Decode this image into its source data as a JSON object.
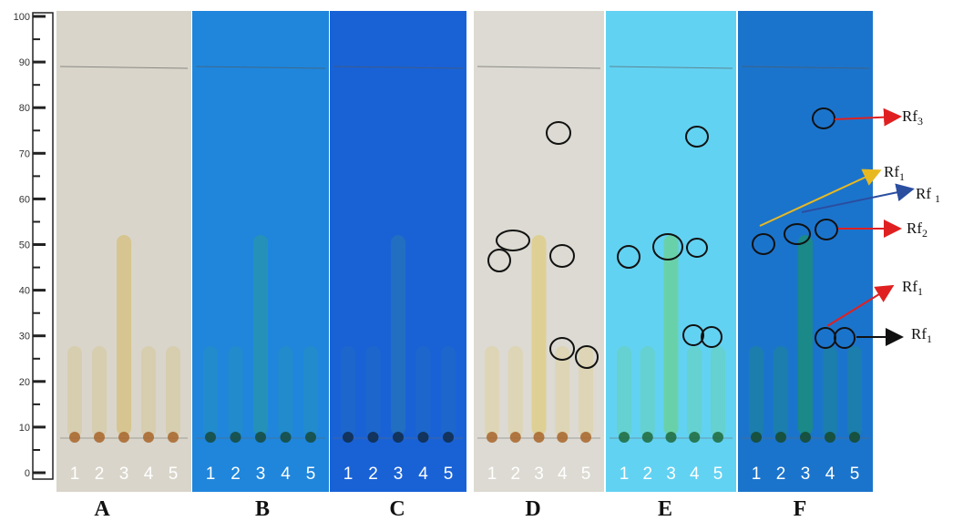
{
  "ruler": {
    "labels": [
      "0",
      "10",
      "20",
      "30",
      "40",
      "50",
      "60",
      "70",
      "80",
      "90",
      "100"
    ]
  },
  "panels": [
    {
      "label": "A",
      "lanes": [
        "1",
        "2",
        "3",
        "4",
        "5"
      ]
    },
    {
      "label": "B",
      "lanes": [
        "1",
        "2",
        "3",
        "4",
        "5"
      ]
    },
    {
      "label": "C",
      "lanes": [
        "1",
        "2",
        "3",
        "4",
        "5"
      ]
    },
    {
      "label": "D",
      "lanes": [
        "1",
        "2",
        "3",
        "4",
        "5"
      ]
    },
    {
      "label": "E",
      "lanes": [
        "1",
        "2",
        "3",
        "4",
        "5"
      ]
    },
    {
      "label": "F",
      "lanes": [
        "1",
        "2",
        "3",
        "4",
        "5"
      ]
    }
  ],
  "annotations": [
    {
      "text": "Rf",
      "subscript": "3"
    },
    {
      "text": "Rf",
      "subscript": "1"
    },
    {
      "text": "Rf",
      "subscript": "1"
    },
    {
      "text": "Rf",
      "subscript": "2"
    },
    {
      "text": "Rf",
      "subscript": "1"
    },
    {
      "text": "Rf",
      "subscript": "1"
    }
  ]
}
